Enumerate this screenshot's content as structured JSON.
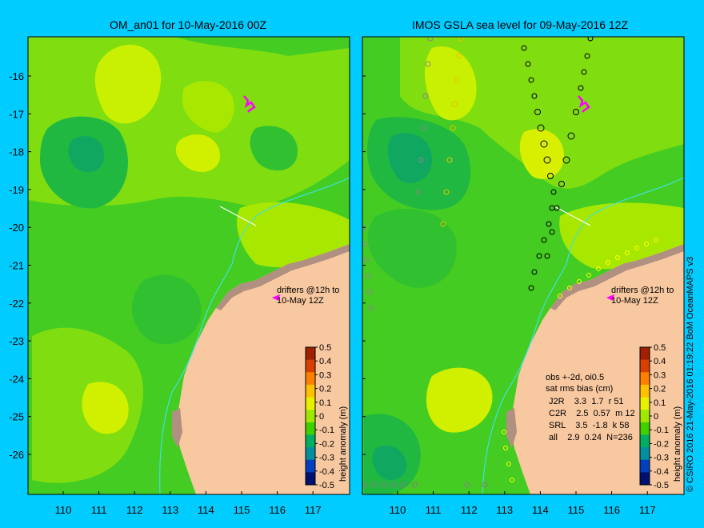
{
  "left_panel": {
    "title": "OM_an01 for 10-May-2016 00Z",
    "drifters_line1": "drifters @12h to",
    "drifters_line2": "10-May 12Z"
  },
  "right_panel": {
    "title": "IMOS GSLA sea level  for 09-May-2016 12Z",
    "drifters_line1": "drifters @12h to",
    "drifters_line2": "10-May 12Z",
    "stats": {
      "header1": "obs +-2d, oi0.5",
      "header2": "sat rms bias (cm)",
      "rows": [
        "J2R    3.3  1.7  r 51",
        "C2R    2.5  0.57  m 12",
        "SRL    3.5  -1.8  k 58",
        "all    2.9  0.24  N=236"
      ]
    }
  },
  "x_axis_labels": [
    "110",
    "111",
    "112",
    "113",
    "114",
    "115",
    "116",
    "117"
  ],
  "y_axis_labels": [
    "-16",
    "-17",
    "-18",
    "-19",
    "-20",
    "-21",
    "-22",
    "-23",
    "-24",
    "-25",
    "-26"
  ],
  "colorbar": {
    "label": "height anomaly (m)",
    "ticks": [
      "0.5",
      "0.4",
      "0.3",
      "0.2",
      "0.1",
      "0",
      "-0.1",
      "-0.2",
      "-0.3",
      "-0.4",
      "-0.5"
    ],
    "colors": [
      "#a02000",
      "#d84000",
      "#ff8000",
      "#ffc000",
      "#e8f000",
      "#a0e800",
      "#40d000",
      "#00b060",
      "#0090a0",
      "#0040c0",
      "#001070"
    ]
  },
  "credit": "© CSIRO 2016   21-May-2016 01:19:22 BoM OceanMAPS v3",
  "colors": {
    "background": "#00ccff",
    "ocean_base": "#44cc22",
    "land": "#f8c8a0",
    "reef": "#b09080",
    "drifter": "#ff00ff"
  }
}
